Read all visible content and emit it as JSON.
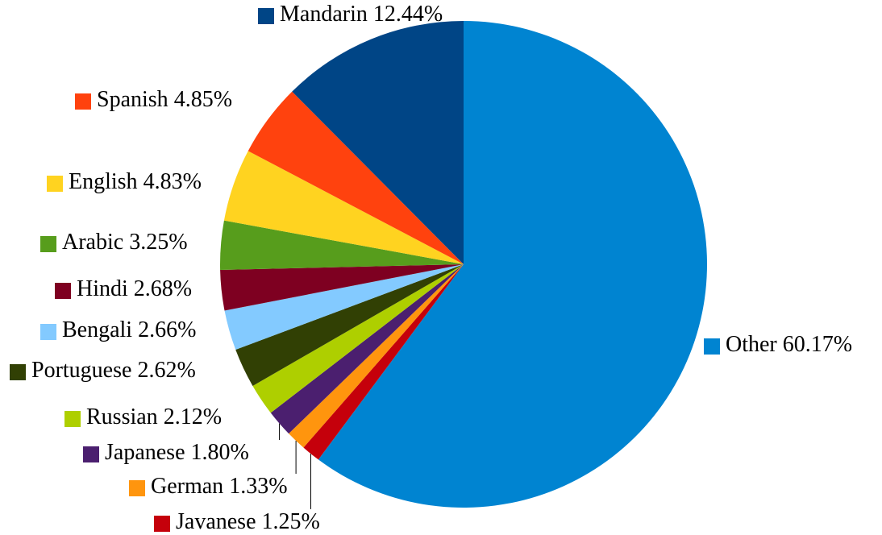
{
  "chart_data": {
    "type": "pie",
    "categories": [
      "Other",
      "Javanese",
      "German",
      "Japanese",
      "Russian",
      "Portuguese",
      "Bengali",
      "Hindi",
      "Arabic",
      "English",
      "Spanish",
      "Mandarin"
    ],
    "values": [
      60.17,
      1.25,
      1.33,
      1.8,
      2.12,
      2.62,
      2.66,
      2.68,
      3.25,
      4.83,
      4.85,
      12.44
    ],
    "value_labels": [
      "60.17%",
      "1.25%",
      "1.33%",
      "1.80%",
      "2.12%",
      "2.62%",
      "2.66%",
      "2.68%",
      "3.25%",
      "4.83%",
      "4.85%",
      "12.44%"
    ],
    "colors": [
      "#0084d1",
      "#c5000b",
      "#ff950e",
      "#4b1f6f",
      "#aecf00",
      "#314004",
      "#83caff",
      "#7e0021",
      "#579d1c",
      "#ffd320",
      "#ff420e",
      "#004586"
    ]
  }
}
